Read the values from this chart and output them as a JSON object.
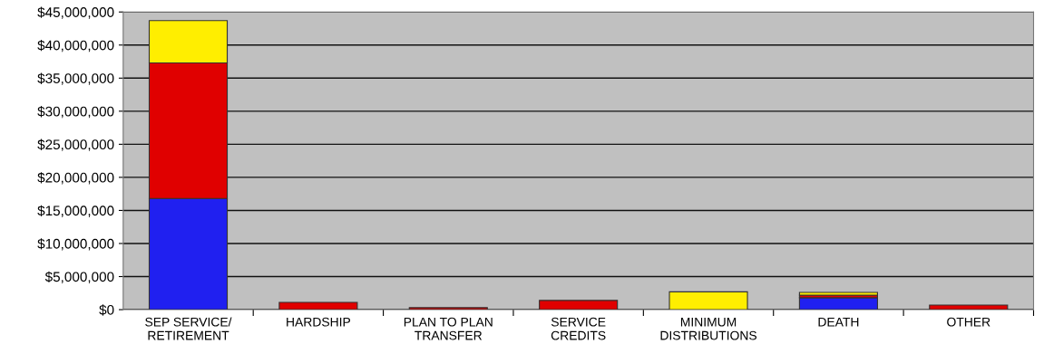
{
  "chart_data": {
    "type": "bar",
    "stacked": true,
    "categories": [
      "SEP SERVICE/\nRETIREMENT",
      "HARDSHIP",
      "PLAN TO PLAN\nTRANSFER",
      "SERVICE\nCREDITS",
      "MINIMUM\nDISTRIBUTIONS",
      "DEATH",
      "OTHER"
    ],
    "series": [
      {
        "color": "#2020f0",
        "values": [
          16800000,
          null,
          null,
          null,
          null,
          1800000,
          null
        ]
      },
      {
        "color": "#e00000",
        "values": [
          20500000,
          1100000,
          300000,
          1400000,
          null,
          400000,
          700000
        ]
      },
      {
        "color": "#ffee00",
        "values": [
          6400000,
          null,
          null,
          null,
          2700000,
          400000,
          null
        ]
      }
    ],
    "ylim": [
      0,
      45000000
    ],
    "yticks": [
      {
        "value": 0,
        "label": "$0"
      },
      {
        "value": 5000000,
        "label": "$5,000,000"
      },
      {
        "value": 10000000,
        "label": "$10,000,000"
      },
      {
        "value": 15000000,
        "label": "$15,000,000"
      },
      {
        "value": 20000000,
        "label": "$20,000,000"
      },
      {
        "value": 25000000,
        "label": "$25,000,000"
      },
      {
        "value": 30000000,
        "label": "$30,000,000"
      },
      {
        "value": 35000000,
        "label": "$35,000,000"
      },
      {
        "value": 40000000,
        "label": "$40,000,000"
      },
      {
        "value": 45000000,
        "label": "$45,000,000"
      }
    ],
    "grid": "y",
    "legend": false
  }
}
